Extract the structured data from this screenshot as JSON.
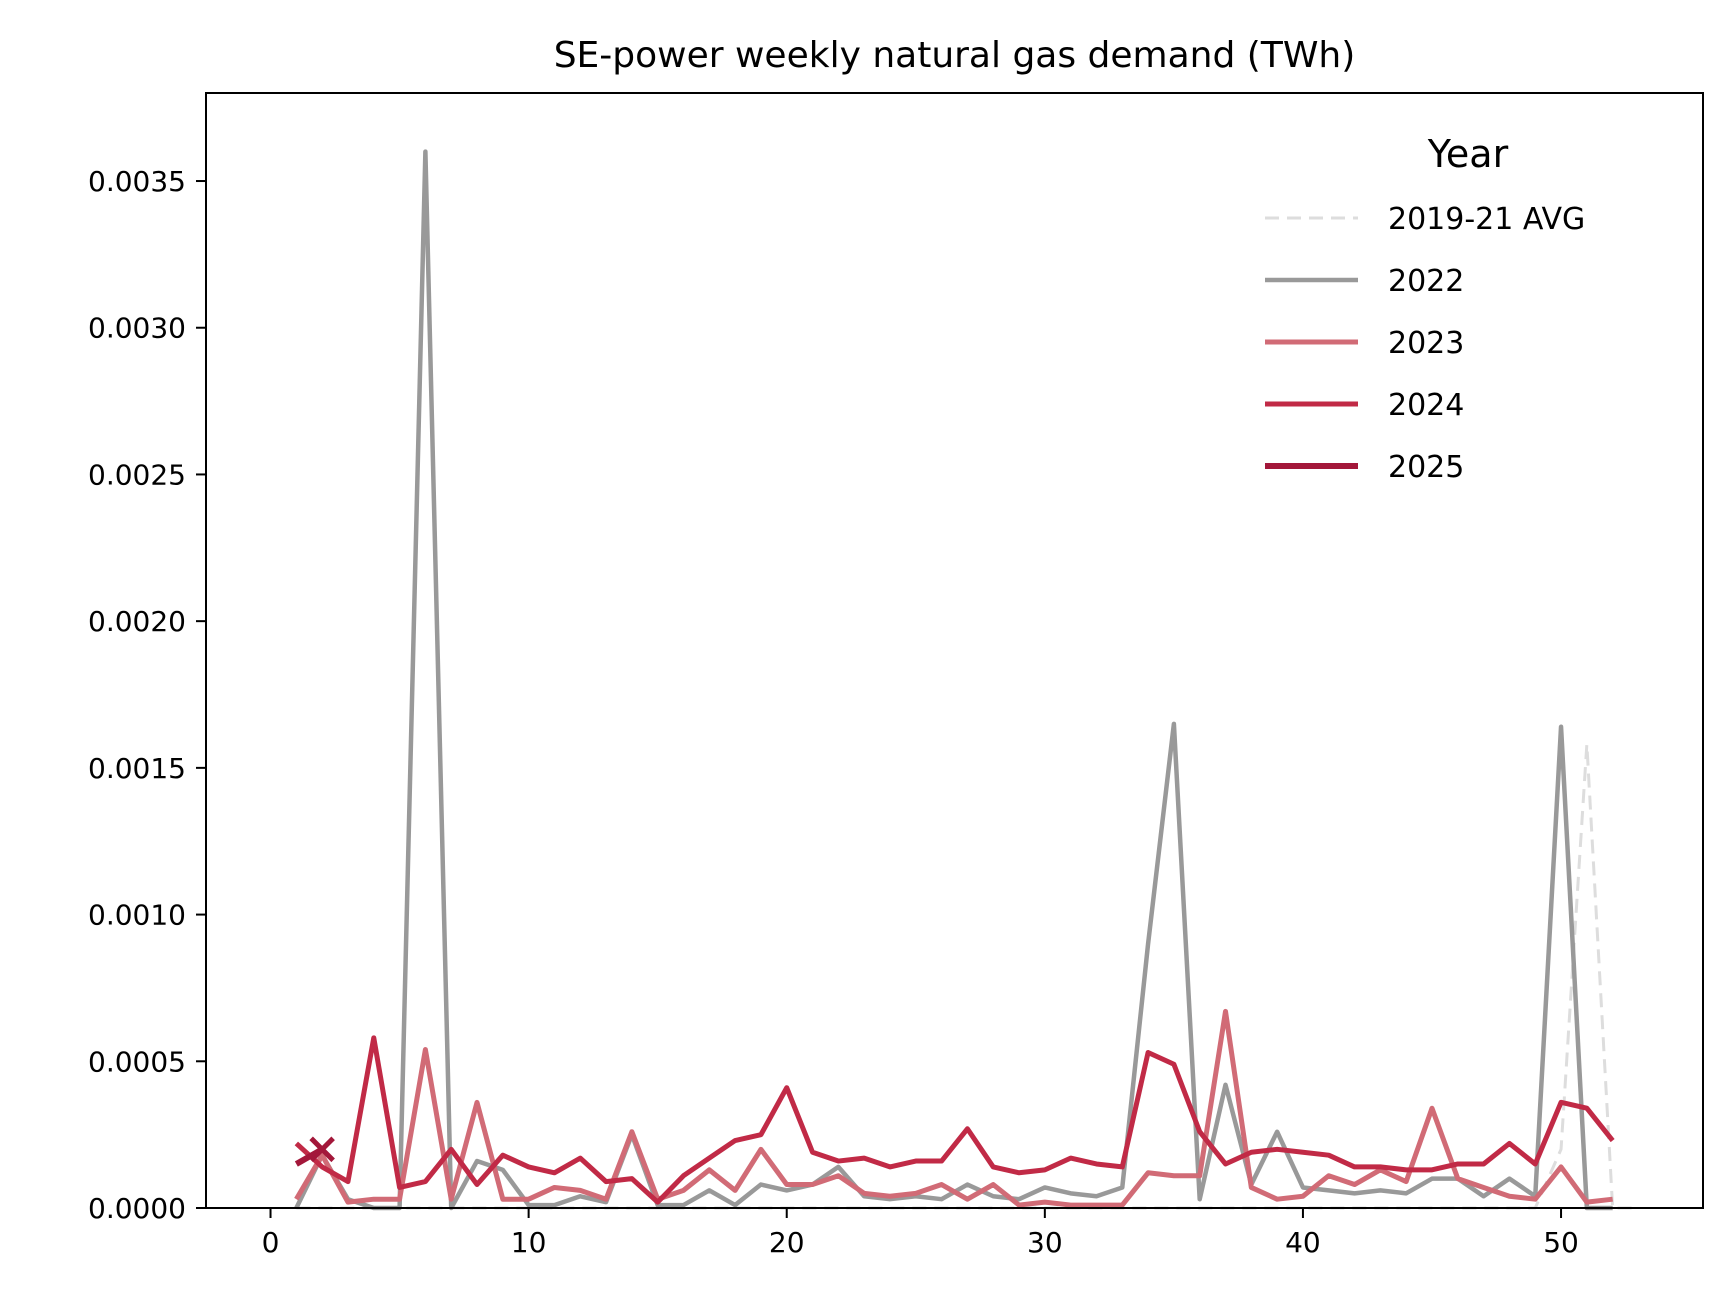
{
  "chart_data": {
    "type": "line",
    "title": "SE-power weekly natural gas demand (TWh)",
    "xlabel": "",
    "ylabel": "",
    "xlim": [
      -2.5,
      55.5
    ],
    "ylim": [
      0,
      0.0038
    ],
    "x_ticks": [
      0,
      10,
      20,
      30,
      40,
      50
    ],
    "x_tick_labels": [
      "0",
      "10",
      "20",
      "30",
      "40",
      "50"
    ],
    "y_ticks": [
      0,
      0.0005,
      0.001,
      0.0015,
      0.002,
      0.0025,
      0.003,
      0.0035
    ],
    "y_tick_labels": [
      "0.0000",
      "0.0005",
      "0.0010",
      "0.0015",
      "0.0020",
      "0.0025",
      "0.0030",
      "0.0035"
    ],
    "grid": false,
    "legend": {
      "title": "Year",
      "placement": "top-right"
    },
    "series": [
      {
        "name": "2019-21 AVG",
        "color": "#dddddd",
        "dashed": true,
        "x": [
          1,
          2,
          3,
          4,
          5,
          6,
          7,
          8,
          9,
          10,
          11,
          12,
          13,
          14,
          15,
          16,
          17,
          18,
          19,
          20,
          21,
          22,
          23,
          24,
          25,
          26,
          27,
          28,
          29,
          30,
          31,
          32,
          33,
          34,
          35,
          36,
          37,
          38,
          39,
          40,
          41,
          42,
          43,
          44,
          45,
          46,
          47,
          48,
          49,
          50,
          51,
          52,
          53
        ],
        "values": [
          0,
          0,
          0,
          0,
          0,
          0,
          0,
          0,
          0,
          0,
          0,
          0,
          0,
          0,
          0,
          0,
          0,
          0,
          0,
          0,
          0,
          0,
          0,
          0,
          0,
          0,
          0,
          0,
          0,
          0,
          0,
          0,
          0,
          0,
          0,
          0,
          0,
          0,
          0,
          0,
          0,
          0,
          0,
          0,
          0,
          0,
          0,
          0,
          0,
          0.0002,
          0.00158,
          0,
          0
        ]
      },
      {
        "name": "2022",
        "color": "#999999",
        "dashed": false,
        "x": [
          1,
          2,
          3,
          4,
          5,
          6,
          7,
          8,
          9,
          10,
          11,
          12,
          13,
          14,
          15,
          16,
          17,
          18,
          19,
          20,
          21,
          22,
          23,
          24,
          25,
          26,
          27,
          28,
          29,
          30,
          31,
          32,
          33,
          34,
          35,
          36,
          37,
          38,
          39,
          40,
          41,
          42,
          43,
          44,
          45,
          46,
          47,
          48,
          49,
          50,
          51,
          52
        ],
        "values": [
          0,
          0.00018,
          3e-05,
          0,
          0,
          0.0036,
          0,
          0.00016,
          0.00013,
          1e-05,
          1e-05,
          4e-05,
          2e-05,
          0.00025,
          1e-05,
          1e-05,
          6e-05,
          1e-05,
          8e-05,
          6e-05,
          8e-05,
          0.00014,
          4e-05,
          3e-05,
          4e-05,
          3e-05,
          8e-05,
          4e-05,
          3e-05,
          7e-05,
          5e-05,
          4e-05,
          7e-05,
          0.0009,
          0.00165,
          3e-05,
          0.00042,
          8e-05,
          0.00026,
          7e-05,
          6e-05,
          5e-05,
          6e-05,
          5e-05,
          0.0001,
          0.0001,
          4e-05,
          0.0001,
          4e-05,
          0.00164,
          0,
          0
        ]
      },
      {
        "name": "2023",
        "color": "#d16b76",
        "dashed": false,
        "x": [
          1,
          2,
          3,
          4,
          5,
          6,
          7,
          8,
          9,
          10,
          11,
          12,
          13,
          14,
          15,
          16,
          17,
          18,
          19,
          20,
          21,
          22,
          23,
          24,
          25,
          26,
          27,
          28,
          29,
          30,
          31,
          32,
          33,
          34,
          35,
          36,
          37,
          38,
          39,
          40,
          41,
          42,
          43,
          44,
          45,
          46,
          47,
          48,
          49,
          50,
          51,
          52
        ],
        "values": [
          3e-05,
          0.00018,
          2e-05,
          3e-05,
          3e-05,
          0.00054,
          3e-05,
          0.00036,
          3e-05,
          3e-05,
          7e-05,
          6e-05,
          3e-05,
          0.00026,
          3e-05,
          6e-05,
          0.00013,
          6e-05,
          0.0002,
          8e-05,
          8e-05,
          0.00011,
          5e-05,
          4e-05,
          5e-05,
          8e-05,
          3e-05,
          8e-05,
          1e-05,
          2e-05,
          1e-05,
          1e-05,
          1e-05,
          0.00012,
          0.00011,
          0.00011,
          0.00067,
          7e-05,
          3e-05,
          4e-05,
          0.00011,
          8e-05,
          0.00013,
          9e-05,
          0.00034,
          0.0001,
          7e-05,
          4e-05,
          3e-05,
          0.00014,
          2e-05,
          3e-05
        ]
      },
      {
        "name": "2024",
        "color": "#c12a46",
        "dashed": false,
        "x": [
          1,
          2,
          3,
          4,
          5,
          6,
          7,
          8,
          9,
          10,
          11,
          12,
          13,
          14,
          15,
          16,
          17,
          18,
          19,
          20,
          21,
          22,
          23,
          24,
          25,
          26,
          27,
          28,
          29,
          30,
          31,
          32,
          33,
          34,
          35,
          36,
          37,
          38,
          39,
          40,
          41,
          42,
          43,
          44,
          45,
          46,
          47,
          48,
          49,
          50,
          51,
          52
        ],
        "values": [
          0.00022,
          0.00014,
          9e-05,
          0.00058,
          7e-05,
          9e-05,
          0.0002,
          8e-05,
          0.00018,
          0.00014,
          0.00012,
          0.00017,
          9e-05,
          0.0001,
          2e-05,
          0.00011,
          0.00017,
          0.00023,
          0.00025,
          0.00041,
          0.00019,
          0.00016,
          0.00017,
          0.00014,
          0.00016,
          0.00016,
          0.00027,
          0.00014,
          0.00012,
          0.00013,
          0.00017,
          0.00015,
          0.00014,
          0.00053,
          0.00049,
          0.00026,
          0.00015,
          0.00019,
          0.0002,
          0.00019,
          0.00018,
          0.00014,
          0.00014,
          0.00013,
          0.00013,
          0.00015,
          0.00015,
          0.00022,
          0.00015,
          0.00036,
          0.00034,
          0.00023
        ]
      },
      {
        "name": "2025",
        "color": "#a3173a",
        "dashed": false,
        "marker_last": "x",
        "x": [
          1,
          2
        ],
        "values": [
          0.00015,
          0.0002
        ]
      }
    ]
  }
}
